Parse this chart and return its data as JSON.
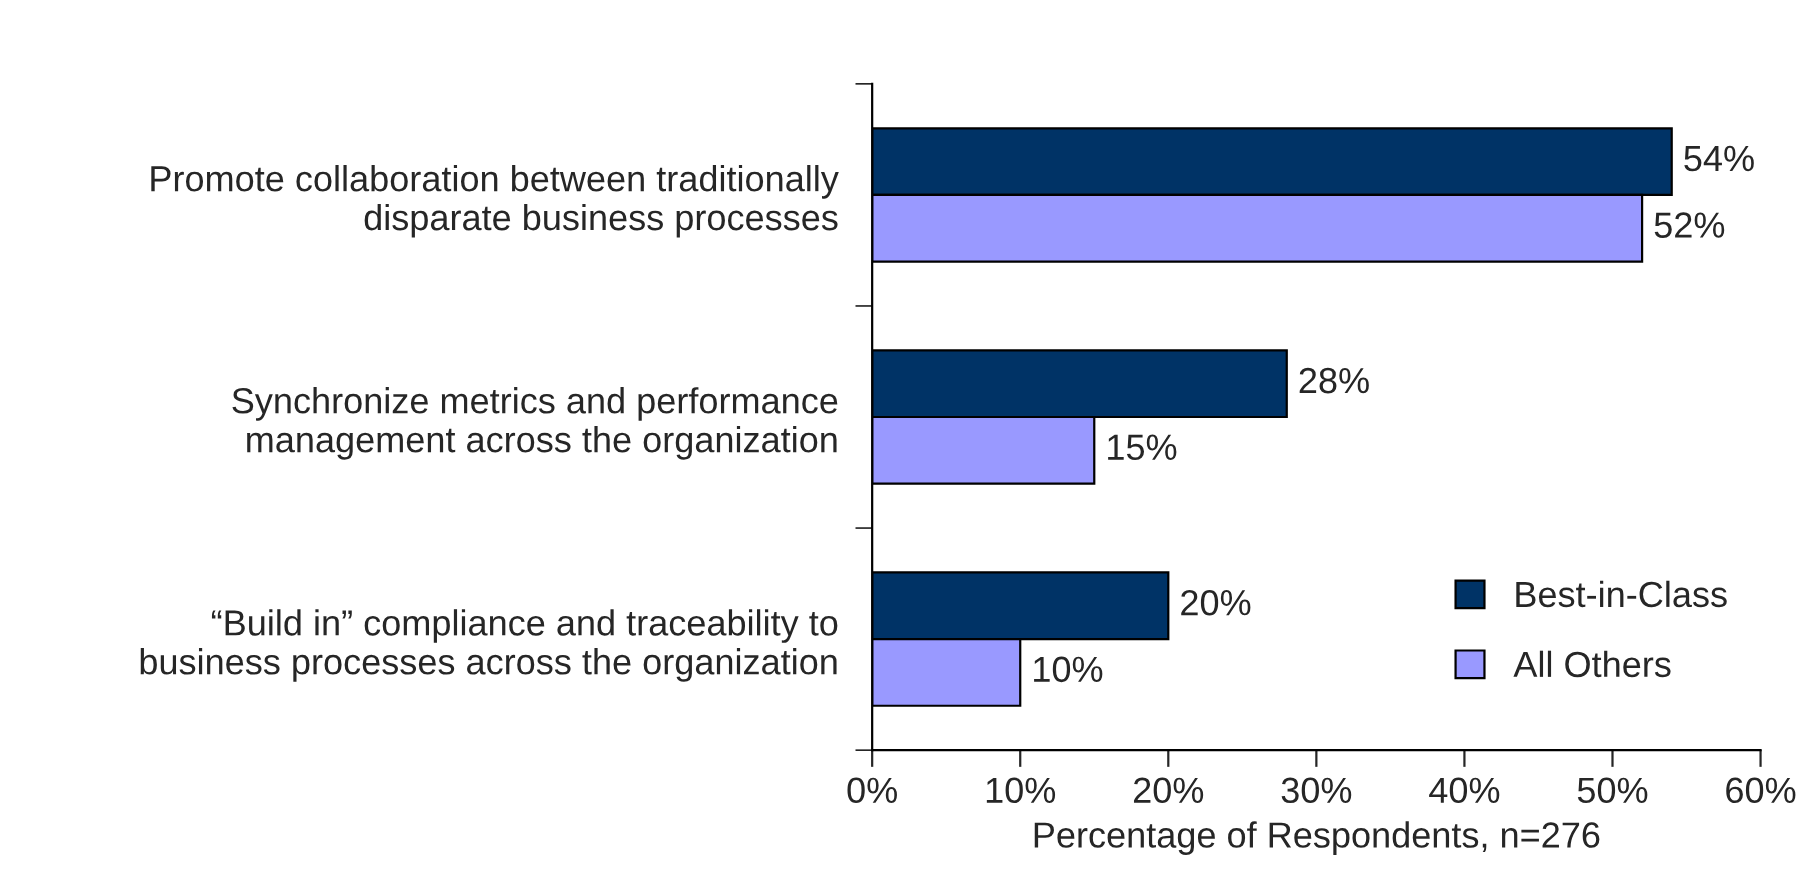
{
  "chart_data": {
    "type": "bar",
    "orientation": "horizontal",
    "xlabel": "Percentage of Respondents, n=276",
    "categories": [
      "Promote collaboration between traditionally\ndisparate business processes",
      "Synchronize metrics and performance\nmanagement across the organization",
      "“Build in” compliance and traceability to\nbusiness processes across the organization"
    ],
    "series": [
      {
        "name": "Best-in-Class",
        "color": "#003366",
        "values": [
          54,
          28,
          20
        ],
        "value_labels": [
          "54%",
          "28%",
          "20%"
        ]
      },
      {
        "name": "All Others",
        "color": "#9999ff",
        "values": [
          52,
          15,
          10
        ],
        "value_labels": [
          "52%",
          "15%",
          "10%"
        ]
      }
    ],
    "xlim": [
      0,
      60
    ],
    "xticks": [
      {
        "value": 0,
        "label": "0%"
      },
      {
        "value": 10,
        "label": "10%"
      },
      {
        "value": 20,
        "label": "20%"
      },
      {
        "value": 30,
        "label": "30%"
      },
      {
        "value": 40,
        "label": "40%"
      },
      {
        "value": 50,
        "label": "50%"
      },
      {
        "value": 60,
        "label": "60%"
      }
    ],
    "grid": false,
    "legend": "bottom right"
  }
}
